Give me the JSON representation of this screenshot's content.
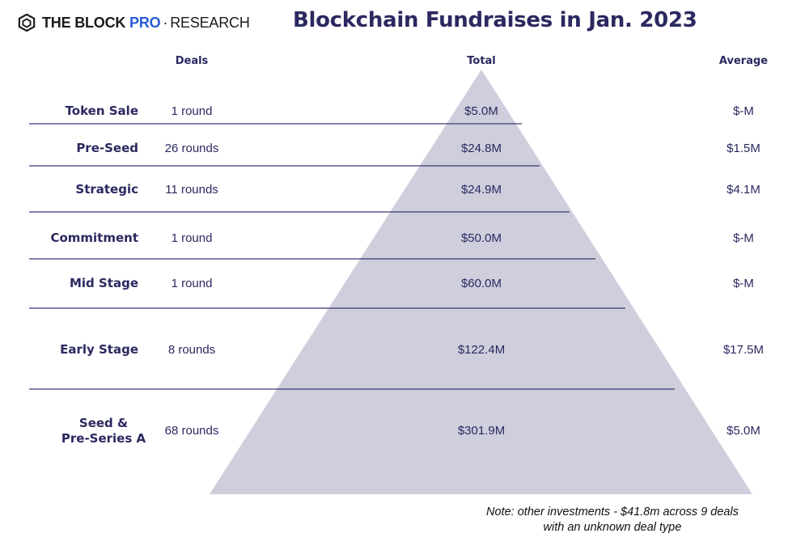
{
  "brand": {
    "name_bold": "THE BLOCK",
    "name_pro": "PRO",
    "separator": "·",
    "name_rest": "RESEARCH"
  },
  "colors": {
    "navy": "#2b2960",
    "pyramid": "#cfcedd",
    "rule": "#3a3873",
    "brand_blue": "#2a5bd7"
  },
  "chart_data": {
    "type": "table",
    "title": "Blockchain Fundraises in Jan. 2023",
    "columns": {
      "deals": "Deals",
      "total": "Total",
      "average": "Average"
    },
    "rows": [
      {
        "category": [
          "Token Sale"
        ],
        "deals": "1 round",
        "total": "$5.0M",
        "total_value": 5.0,
        "average": "$-M"
      },
      {
        "category": [
          "Pre-Seed"
        ],
        "deals": "26 rounds",
        "total": "$24.8M",
        "total_value": 24.8,
        "average": "$1.5M"
      },
      {
        "category": [
          "Strategic"
        ],
        "deals": "11 rounds",
        "total": "$24.9M",
        "total_value": 24.9,
        "average": "$4.1M"
      },
      {
        "category": [
          "Commitment"
        ],
        "deals": "1 round",
        "total": "$50.0M",
        "total_value": 50.0,
        "average": "$-M"
      },
      {
        "category": [
          "Mid Stage"
        ],
        "deals": "1 round",
        "total": "$60.0M",
        "total_value": 60.0,
        "average": "$-M"
      },
      {
        "category": [
          "Early Stage"
        ],
        "deals": "8 rounds",
        "total": "$122.4M",
        "total_value": 122.4,
        "average": "$17.5M"
      },
      {
        "category": [
          "Seed &",
          "Pre-Series A"
        ],
        "deals": "68 rounds",
        "total": "$301.9M",
        "total_value": 301.9,
        "average": "$5.0M"
      }
    ]
  },
  "note": "Note: other investments - $41.8m across 9 deals with an unknown deal type"
}
